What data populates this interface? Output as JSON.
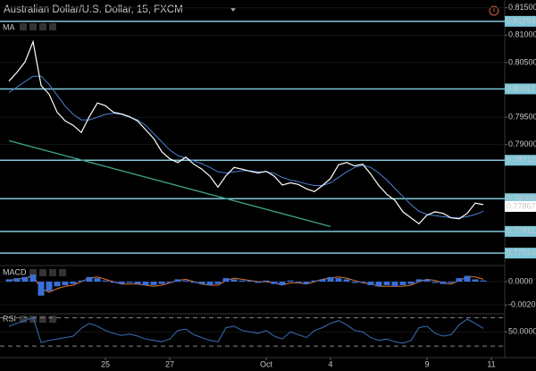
{
  "chart_data": [
    {
      "type": "line",
      "title": "Australian Dollar/U.S. Dollar, 15, FXCM",
      "categories": [
        null,
        null,
        null,
        null,
        null,
        null,
        null,
        null,
        null,
        null,
        null,
        null,
        "25",
        null,
        null,
        null,
        null,
        null,
        null,
        null,
        "27",
        null,
        null,
        null,
        null,
        null,
        null,
        null,
        null,
        null,
        null,
        null,
        "Oct",
        null,
        null,
        null,
        null,
        null,
        null,
        null,
        "4",
        null,
        null,
        null,
        null,
        null,
        null,
        null,
        null,
        null,
        null,
        null,
        "9",
        null,
        null,
        null,
        null,
        null,
        null,
        null,
        "11"
      ],
      "series": [
        {
          "color": "#ffffff",
          "values": [
            0.8016,
            0.8032,
            0.8051,
            0.8088,
            0.8008,
            0.7992,
            0.7959,
            0.7943,
            0.7935,
            0.7922,
            0.7951,
            0.7976,
            0.7971,
            0.7959,
            0.7956,
            0.7951,
            0.7943,
            0.7927,
            0.7911,
            0.7887,
            0.7874,
            0.7867,
            0.7877,
            0.7864,
            0.7855,
            0.7842,
            0.7822,
            0.7843,
            0.7858,
            0.7855,
            0.7851,
            0.7848,
            0.7851,
            0.7842,
            0.7826,
            0.783,
            0.7827,
            0.7819,
            0.7814,
            0.7825,
            0.7838,
            0.7863,
            0.7867,
            0.7861,
            0.7864,
            0.7846,
            0.7825,
            0.7809,
            0.7798,
            0.7777,
            0.7766,
            0.7755,
            0.7771,
            0.7777,
            0.7774,
            0.7766,
            0.7764,
            0.7774,
            0.7793,
            0.779,
            null
          ]
        },
        {
          "name": "MA",
          "color": "#4a7fd4",
          "values": [
            0.7995,
            0.8005,
            0.8015,
            0.8025,
            0.8025,
            0.801,
            0.799,
            0.797,
            0.7955,
            0.7945,
            0.7945,
            0.795,
            0.7955,
            0.7957,
            0.7955,
            0.795,
            0.7945,
            0.7935,
            0.792,
            0.7905,
            0.789,
            0.788,
            0.7875,
            0.787,
            0.7865,
            0.7858,
            0.785,
            0.7848,
            0.785,
            0.7852,
            0.7852,
            0.785,
            0.785,
            0.7847,
            0.784,
            0.7835,
            0.7832,
            0.7828,
            0.7825,
            0.7825,
            0.783,
            0.784,
            0.785,
            0.7858,
            0.7862,
            0.7858,
            0.7848,
            0.7835,
            0.782,
            0.7805,
            0.779,
            0.7778,
            0.7772,
            0.777,
            0.7768,
            0.7766,
            0.7766,
            0.7768,
            0.7772,
            0.7778,
            null
          ]
        }
      ],
      "levels": {
        "color": "#7fc7d9",
        "values": [
          0.81253,
          0.80017,
          0.78712,
          0.78009,
          0.77411,
          0.77014
        ]
      },
      "last_price": 0.77867,
      "trendline": {
        "color": "#3fa48a",
        "x": [
          0,
          40
        ],
        "values": [
          0.7907,
          0.775
        ]
      },
      "ylim": [
        0.7682,
        0.8161
      ],
      "yticks": [
        {
          "value": 0.815,
          "label": "0.81500"
        },
        {
          "value": 0.81,
          "label": "0.81000"
        },
        {
          "value": 0.805,
          "label": "0.80500"
        },
        {
          "value": 0.795,
          "label": "0.79500"
        },
        {
          "value": 0.79,
          "label": "0.79000"
        }
      ]
    },
    {
      "type": "bar",
      "title": "MACD",
      "series": [
        {
          "type": "bar",
          "color": "#3a6fd8",
          "values": [
            0.0002,
            0.0003,
            0.0004,
            0.0006,
            -0.0012,
            -0.0008,
            -0.0004,
            -0.0003,
            -0.0002,
            0.0001,
            0.0004,
            0.0003,
            0.0001,
            -0.0001,
            -0.0002,
            -0.0001,
            -0.0002,
            -0.0003,
            -0.0003,
            -0.0002,
            -0.0001,
            0.0002,
            0.0001,
            -0.0001,
            -0.0002,
            -0.0003,
            -0.0002,
            0.0003,
            0.0002,
            0.0001,
            0.0001,
            -0.0001,
            0.0001,
            -0.0002,
            -0.0003,
            0.0001,
            -0.0001,
            -0.0002,
            0.0001,
            0.0002,
            0.0004,
            0.0003,
            0.0002,
            -0.0001,
            -0.0001,
            -0.0003,
            -0.0004,
            -0.0003,
            -0.0004,
            -0.0003,
            -0.0002,
            0.0002,
            0.0002,
            -0.0001,
            -0.0002,
            -0.0001,
            0.0003,
            0.0005,
            0.0002,
            0.0001
          ]
        },
        {
          "type": "line",
          "color": "#e0762b",
          "values": [
            0.0001,
            0.0002,
            0.0003,
            0.0005,
            -0.0006,
            -0.0009,
            -0.0006,
            -0.0004,
            -0.0003,
            0,
            0.0003,
            0.0004,
            0.0002,
            0,
            -0.0002,
            -0.0002,
            -0.0002,
            -0.0003,
            -0.0004,
            -0.0003,
            -0.0001,
            0.0001,
            0.0002,
            0,
            -0.0002,
            -0.0003,
            -0.0003,
            0.0001,
            0.0003,
            0.0002,
            0.0001,
            0,
            0,
            -0.0001,
            -0.0003,
            -0.0001,
            -0.0001,
            -0.0002,
            0,
            0.0002,
            0.0003,
            0.0004,
            0.0003,
            0.0001,
            -0.0001,
            -0.0002,
            -0.0004,
            -0.0004,
            -0.0004,
            -0.0004,
            -0.0003,
            0,
            0.0002,
            0.0001,
            -0.0001,
            -0.0002,
            0.0001,
            0.0004,
            0.0004,
            0.0002
          ]
        }
      ],
      "ylim": [
        -0.0026,
        0.00123
      ],
      "yticks": [
        {
          "value": 0,
          "label": "0.0000"
        },
        {
          "value": -0.002,
          "label": "-0.0020"
        }
      ]
    },
    {
      "type": "line",
      "title": "RSI",
      "series": [
        {
          "type": "line",
          "color": "#3b6eb5",
          "values": [
            58,
            62,
            66,
            70,
            35,
            38,
            40,
            42,
            44,
            55,
            62,
            58,
            52,
            48,
            45,
            47,
            44,
            40,
            38,
            36,
            40,
            52,
            54,
            46,
            42,
            38,
            36,
            56,
            58,
            52,
            50,
            48,
            52,
            44,
            40,
            50,
            46,
            42,
            52,
            56,
            62,
            66,
            60,
            52,
            50,
            42,
            38,
            40,
            36,
            34,
            38,
            56,
            58,
            48,
            44,
            46,
            60,
            68,
            62,
            55
          ]
        }
      ],
      "bands": [
        30,
        70
      ],
      "ylim": [
        15,
        73
      ],
      "yticks": [
        {
          "value": 50,
          "label": "50.0000"
        }
      ]
    }
  ]
}
